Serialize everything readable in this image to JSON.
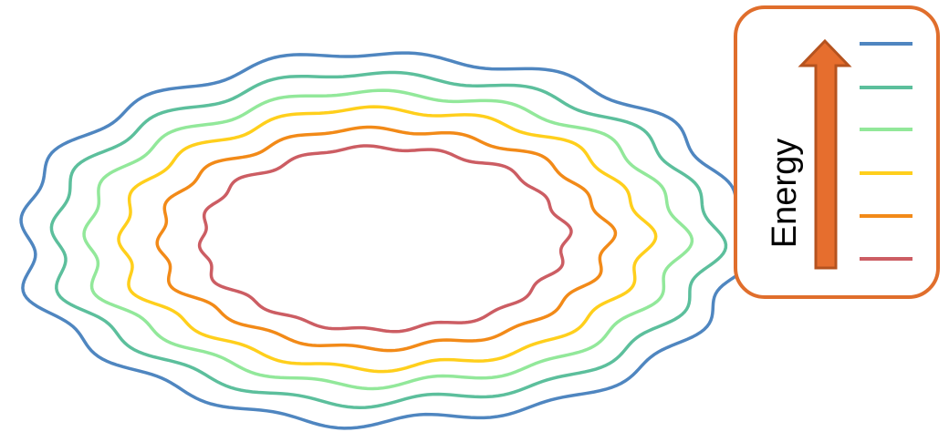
{
  "diagram": {
    "contours": [
      {
        "name": "contour-1",
        "color": "#4f86c0"
      },
      {
        "name": "contour-2",
        "color": "#5cbf9c"
      },
      {
        "name": "contour-3",
        "color": "#92e89a"
      },
      {
        "name": "contour-4",
        "color": "#ffcf1c"
      },
      {
        "name": "contour-5",
        "color": "#f28a18"
      },
      {
        "name": "contour-6",
        "color": "#cc5d63"
      }
    ],
    "legend": {
      "label": "Energy",
      "border_color": "#e06e2c",
      "arrow_color": "#e66e2e",
      "arrow_stroke": "#b5531f",
      "arrow_icon": "up-arrow-icon"
    }
  }
}
